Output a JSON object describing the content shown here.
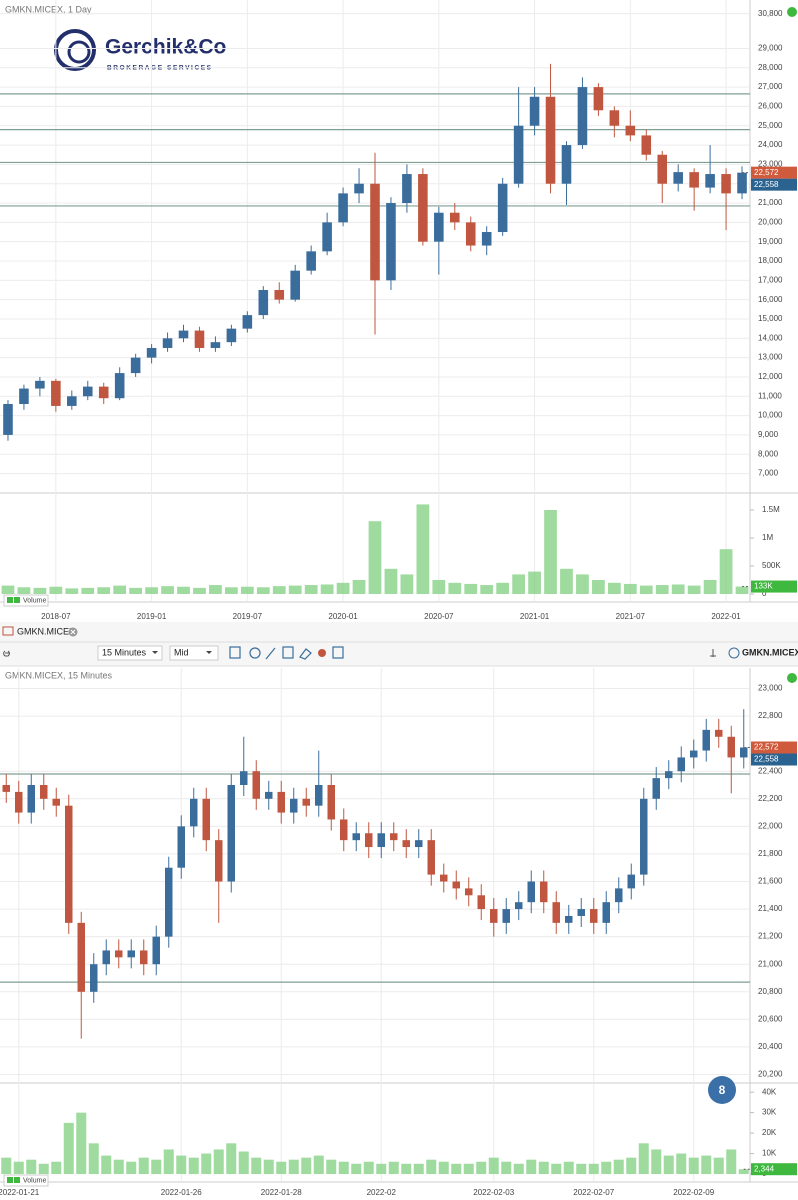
{
  "logo": {
    "name": "Gerchik&Co",
    "tagline": "BROKERAGE SERVICES"
  },
  "toolbar": {
    "tab": "GMKN.MICEX",
    "interval": "15 Minutes",
    "price_type": "Mid",
    "symbol": "GMKN.MICEX"
  },
  "badge": "8",
  "chart_data": [
    {
      "type": "candlestick",
      "title": "GMKN.MICEX, 1 Day",
      "categories": [
        null,
        null,
        null,
        "2018-07",
        null,
        null,
        null,
        null,
        null,
        "2019-01",
        null,
        null,
        null,
        null,
        null,
        "2019-07",
        null,
        null,
        null,
        null,
        null,
        "2020-01",
        null,
        null,
        null,
        null,
        null,
        "2020-07",
        null,
        null,
        null,
        null,
        null,
        "2021-01",
        null,
        null,
        null,
        null,
        null,
        "2021-07",
        null,
        null,
        null,
        null,
        null,
        "2022-01",
        null
      ],
      "open": [
        9000,
        10600,
        11400,
        11800,
        10500,
        11000,
        11500,
        10900,
        12200,
        13000,
        13500,
        14000,
        14400,
        13500,
        13800,
        14500,
        15200,
        16500,
        16000,
        17500,
        18500,
        20000,
        21500,
        22000,
        17000,
        21000,
        22500,
        19000,
        20500,
        20000,
        18800,
        19500,
        22000,
        25000,
        26500,
        22000,
        24000,
        27000,
        25800,
        25000,
        24500,
        23500,
        22000,
        22600,
        21800,
        22500,
        21500
      ],
      "high": [
        10800,
        11600,
        12000,
        11900,
        11300,
        11800,
        11700,
        12500,
        13200,
        13700,
        14300,
        14700,
        14600,
        14100,
        14700,
        15400,
        16700,
        16900,
        17800,
        18800,
        20500,
        21800,
        22800,
        23600,
        21300,
        23000,
        22800,
        20800,
        21000,
        20300,
        19800,
        22300,
        27000,
        27000,
        28200,
        24200,
        27500,
        27200,
        26000,
        25800,
        24800,
        23700,
        23000,
        22800,
        24000,
        22800,
        22900
      ],
      "low": [
        8700,
        10300,
        11000,
        10200,
        10300,
        10800,
        10600,
        10800,
        12000,
        12700,
        13300,
        13800,
        13300,
        13300,
        13600,
        14300,
        15000,
        15800,
        15900,
        17300,
        18300,
        19800,
        21000,
        14200,
        16500,
        20500,
        18800,
        17300,
        19600,
        18500,
        18300,
        19300,
        21800,
        24500,
        21500,
        20900,
        23800,
        25500,
        24400,
        24200,
        23200,
        21000,
        21600,
        20600,
        21500,
        19600,
        21200
      ],
      "close": [
        10600,
        11400,
        11800,
        10500,
        11000,
        11500,
        10900,
        12200,
        13000,
        13500,
        14000,
        14400,
        13500,
        13800,
        14500,
        15200,
        16500,
        16000,
        17500,
        18500,
        20000,
        21500,
        22000,
        17000,
        21000,
        22500,
        19000,
        20500,
        20000,
        18800,
        19500,
        22000,
        25000,
        26500,
        22000,
        24000,
        27000,
        25800,
        25000,
        24500,
        23500,
        22000,
        22600,
        21800,
        22500,
        21500,
        22572
      ],
      "up_color": "#3a6d9c",
      "down_color": "#c0563f",
      "ylim": [
        6150,
        31300
      ],
      "yticks": [
        {
          "value": 7000,
          "label": "7,000"
        },
        {
          "value": 8000,
          "label": "8,000"
        },
        {
          "value": 9000,
          "label": "9,000"
        },
        {
          "value": 10000,
          "label": "10,000"
        },
        {
          "value": 11000,
          "label": "11,000"
        },
        {
          "value": 12000,
          "label": "12,000"
        },
        {
          "value": 13000,
          "label": "13,000"
        },
        {
          "value": 14000,
          "label": "14,000"
        },
        {
          "value": 15000,
          "label": "15,000"
        },
        {
          "value": 16000,
          "label": "16,000"
        },
        {
          "value": 17000,
          "label": "17,000"
        },
        {
          "value": 18000,
          "label": "18,000"
        },
        {
          "value": 19000,
          "label": "19,000"
        },
        {
          "value": 20000,
          "label": "20,000"
        },
        {
          "value": 21000,
          "label": "21,000"
        },
        {
          "value": 22000,
          "label": "22,000"
        },
        {
          "value": 23000,
          "label": "23,000"
        },
        {
          "value": 24000,
          "label": "24,000"
        },
        {
          "value": 25000,
          "label": "25,000"
        },
        {
          "value": 26000,
          "label": "26,000"
        },
        {
          "value": 27000,
          "label": "27,000"
        },
        {
          "value": 28000,
          "label": "28,000"
        },
        {
          "value": 29000,
          "label": "29,000"
        },
        {
          "value": 30800,
          "label": "30,800"
        }
      ],
      "grid": true,
      "levels": [
        26650,
        24800,
        23100,
        20850
      ],
      "level_color": "#7f9f93",
      "price_markers": [
        {
          "value": 22572,
          "label": "22,572",
          "color": "#cf5a3c"
        },
        {
          "value": 22558,
          "label": "22,558",
          "color": "#2b6390"
        }
      ],
      "volume": {
        "name": "Volume",
        "color": "#7fcf7f",
        "values": [
          150000,
          120000,
          110000,
          130000,
          100000,
          110000,
          120000,
          150000,
          110000,
          120000,
          140000,
          130000,
          110000,
          160000,
          120000,
          130000,
          120000,
          140000,
          150000,
          160000,
          170000,
          200000,
          250000,
          1300000,
          450000,
          350000,
          1600000,
          250000,
          200000,
          180000,
          160000,
          200000,
          350000,
          400000,
          1500000,
          450000,
          350000,
          250000,
          200000,
          180000,
          150000,
          160000,
          170000,
          150000,
          250000,
          800000,
          133000
        ],
        "ylim": [
          0,
          1750000
        ],
        "yticks": [
          0,
          {
            "value": 500000,
            "label": "500K"
          },
          {
            "value": 1000000,
            "label": "1M"
          },
          {
            "value": 1500000,
            "label": "1.5M"
          }
        ],
        "marker": {
          "value": 133000,
          "label": "133K"
        }
      }
    },
    {
      "type": "candlestick",
      "title": "GMKN.MICEX, 15 Minutes",
      "categories": [
        null,
        "2022-01-21",
        null,
        null,
        null,
        null,
        null,
        null,
        null,
        null,
        null,
        null,
        null,
        null,
        "2022-01-26",
        null,
        null,
        null,
        null,
        null,
        null,
        null,
        "2022-01-28",
        null,
        null,
        null,
        null,
        null,
        null,
        null,
        "2022-02",
        null,
        null,
        null,
        null,
        null,
        null,
        null,
        null,
        "2022-02-03",
        null,
        null,
        null,
        null,
        null,
        null,
        null,
        "2022-02-07",
        null,
        null,
        null,
        null,
        null,
        null,
        null,
        "2022-02-09",
        null,
        null,
        null,
        null
      ],
      "open": [
        22300,
        22250,
        22100,
        22300,
        22200,
        22150,
        21300,
        20800,
        21000,
        21100,
        21050,
        21100,
        21000,
        21200,
        21700,
        22000,
        22200,
        21900,
        21600,
        22300,
        22400,
        22200,
        22250,
        22100,
        22200,
        22150,
        22300,
        22050,
        21900,
        21950,
        21850,
        21950,
        21900,
        21850,
        21900,
        21650,
        21600,
        21550,
        21500,
        21400,
        21300,
        21400,
        21450,
        21600,
        21450,
        21300,
        21350,
        21400,
        21300,
        21450,
        21550,
        21650,
        22200,
        22350,
        22400,
        22500,
        22550,
        22700,
        22650,
        22500
      ],
      "high": [
        22380,
        22330,
        22380,
        22380,
        22280,
        22230,
        21380,
        21080,
        21180,
        21180,
        21180,
        21180,
        21280,
        21780,
        22080,
        22280,
        22280,
        21980,
        22380,
        22650,
        22480,
        22330,
        22330,
        22280,
        22280,
        22550,
        22380,
        22130,
        22030,
        22030,
        22030,
        22030,
        21980,
        21980,
        21980,
        21730,
        21680,
        21630,
        21580,
        21480,
        21480,
        21530,
        21680,
        21680,
        21530,
        21430,
        21480,
        21480,
        21530,
        21630,
        21730,
        22280,
        22430,
        22480,
        22580,
        22630,
        22780,
        22780,
        22730,
        22850
      ],
      "low": [
        22170,
        22020,
        22020,
        22120,
        22070,
        21220,
        20460,
        20720,
        20920,
        20970,
        20970,
        20920,
        20920,
        21120,
        21620,
        21920,
        21820,
        21300,
        21520,
        22220,
        22120,
        22120,
        22020,
        22020,
        22070,
        22070,
        21970,
        21820,
        21820,
        21770,
        21770,
        21820,
        21770,
        21770,
        21570,
        21520,
        21470,
        21420,
        21320,
        21200,
        21220,
        21320,
        21370,
        21370,
        21220,
        21220,
        21270,
        21220,
        21220,
        21370,
        21470,
        21570,
        22120,
        22270,
        22320,
        22420,
        22470,
        22570,
        22240,
        22420
      ],
      "close": [
        22250,
        22100,
        22300,
        22200,
        22150,
        21300,
        20800,
        21000,
        21100,
        21050,
        21100,
        21000,
        21200,
        21700,
        22000,
        22200,
        21900,
        21600,
        22300,
        22400,
        22200,
        22250,
        22100,
        22200,
        22150,
        22300,
        22050,
        21900,
        21950,
        21850,
        21950,
        21900,
        21850,
        21900,
        21650,
        21600,
        21550,
        21500,
        21400,
        21300,
        21400,
        21450,
        21600,
        21450,
        21300,
        21350,
        21400,
        21300,
        21450,
        21550,
        21650,
        22200,
        22350,
        22400,
        22500,
        22550,
        22700,
        22650,
        22500,
        22572
      ],
      "up_color": "#3a6d9c",
      "down_color": "#c0563f",
      "ylim": [
        20160,
        23040
      ],
      "yticks": [
        {
          "value": 20200,
          "label": "20,200"
        },
        {
          "value": 20400,
          "label": "20,400"
        },
        {
          "value": 20600,
          "label": "20,600"
        },
        {
          "value": 20800,
          "label": "20,800"
        },
        {
          "value": 21000,
          "label": "21,000"
        },
        {
          "value": 21200,
          "label": "21,200"
        },
        {
          "value": 21400,
          "label": "21,400"
        },
        {
          "value": 21600,
          "label": "21,600"
        },
        {
          "value": 21800,
          "label": "21,800"
        },
        {
          "value": 22000,
          "label": "22,000"
        },
        {
          "value": 22200,
          "label": "22,200"
        },
        {
          "value": 22400,
          "label": "22,400"
        },
        {
          "value": 22800,
          "label": "22,800"
        },
        {
          "value": 23000,
          "label": "23,000"
        }
      ],
      "grid": true,
      "levels": [
        22380,
        20870
      ],
      "level_color": "#7f9f93",
      "price_markers": [
        {
          "value": 22572,
          "label": "22,572",
          "color": "#cf5a3c"
        },
        {
          "value": 22558,
          "label": "22,558",
          "color": "#2b6390"
        }
      ],
      "volume": {
        "name": "Volume",
        "color": "#7fcf7f",
        "values": [
          8000,
          6000,
          7000,
          5000,
          6000,
          25000,
          30000,
          15000,
          9000,
          7000,
          6000,
          8000,
          7000,
          12000,
          9000,
          8000,
          10000,
          12000,
          15000,
          11000,
          8000,
          7000,
          6000,
          7000,
          8000,
          9000,
          7000,
          6000,
          5000,
          6000,
          5000,
          6000,
          5000,
          5000,
          7000,
          6000,
          5000,
          5000,
          6000,
          8000,
          6000,
          5000,
          7000,
          6000,
          5000,
          6000,
          5000,
          5000,
          6000,
          7000,
          8000,
          15000,
          12000,
          9000,
          10000,
          8000,
          9000,
          8000,
          12000,
          2344
        ],
        "ylim": [
          0,
          44000
        ],
        "yticks": [
          0,
          {
            "value": 10000,
            "label": "10K"
          },
          {
            "value": 20000,
            "label": "20K"
          },
          {
            "value": 30000,
            "label": "30K"
          },
          {
            "value": 40000,
            "label": "40K"
          }
        ],
        "marker": {
          "value": 2344,
          "label": "2,344"
        }
      }
    }
  ]
}
